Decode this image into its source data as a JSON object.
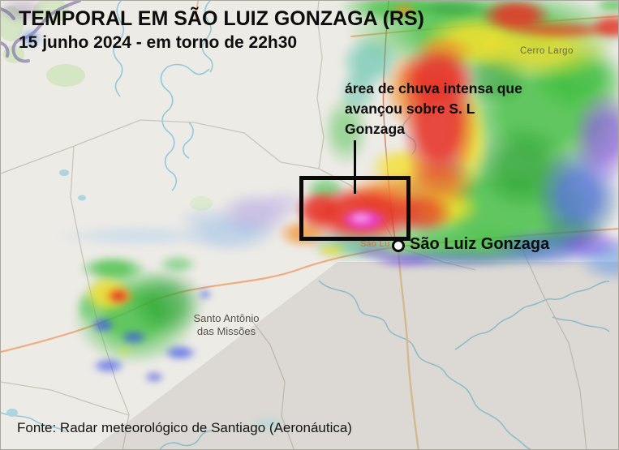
{
  "header": {
    "title": "TEMPORAL EM SÃO LUIZ GONZAGA (RS)",
    "subtitle": "15 junho 2024 - em torno de 22h30"
  },
  "annotation": {
    "lines": [
      "área de chuva intensa que",
      "avançou sobre S. L",
      "Gonzaga"
    ]
  },
  "city_marker": {
    "label": "São Luiz Gonzaga"
  },
  "map_labels": {
    "cerro_largo": "Cerro Largo",
    "santo_antonio": [
      "Santo Antônio",
      "das Missões"
    ],
    "sao_luiz_partial": "São Lu"
  },
  "footer": {
    "source": "Fonte: Radar meteorológico de Santiago (Aeronáutica)"
  },
  "radar_palette": {
    "green": "#3dbd3d",
    "yellow": "#f2df2e",
    "orange": "#f08c28",
    "red": "#e63226",
    "magenta": "#e83ce0",
    "blue": "#3a52e8",
    "purple": "#7a3ae8"
  }
}
